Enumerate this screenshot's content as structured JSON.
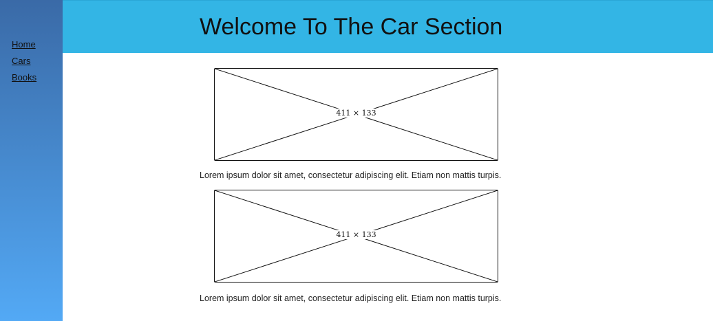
{
  "sidebar": {
    "items": [
      {
        "label": "Home"
      },
      {
        "label": "Cars"
      },
      {
        "label": "Books"
      }
    ]
  },
  "header": {
    "title": "Welcome To The Car Section"
  },
  "main": {
    "items": [
      {
        "image_label": "411 × 133",
        "caption": "Lorem ipsum dolor sit amet, consectetur adipiscing elit. Etiam non mattis turpis."
      },
      {
        "image_label": "411 × 133",
        "caption": "Lorem ipsum dolor sit amet, consectetur adipiscing elit. Etiam non mattis turpis."
      }
    ]
  },
  "colors": {
    "header_background": "#33b5e5",
    "sidebar_top": "#3a6aa7",
    "sidebar_bottom": "#53a9f5"
  }
}
